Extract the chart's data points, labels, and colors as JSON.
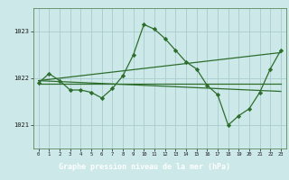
{
  "title": "Graphe pression niveau de la mer (hPa)",
  "bg_color": "#cce8e8",
  "plot_bg_color": "#cce8e8",
  "label_bg_color": "#3a6e3a",
  "label_text_color": "#ffffff",
  "grid_color": "#aacccc",
  "line_color": "#2d6e2d",
  "marker_color": "#2d6e2d",
  "ylim": [
    1020.5,
    1023.5
  ],
  "yticks": [
    1021,
    1022,
    1023
  ],
  "xlim": [
    -0.5,
    23.5
  ],
  "xticks": [
    0,
    1,
    2,
    3,
    4,
    5,
    6,
    7,
    8,
    9,
    10,
    11,
    12,
    13,
    14,
    15,
    16,
    17,
    18,
    19,
    20,
    21,
    22,
    23
  ],
  "series1_x": [
    0,
    1,
    2,
    3,
    4,
    5,
    6,
    7,
    8,
    9,
    10,
    11,
    12,
    13,
    14,
    15,
    16,
    17,
    18,
    19,
    20,
    21,
    22,
    23
  ],
  "series1_y": [
    1021.9,
    1022.1,
    1021.95,
    1021.75,
    1021.75,
    1021.7,
    1021.58,
    1021.78,
    1022.05,
    1022.5,
    1023.15,
    1023.05,
    1022.85,
    1022.6,
    1022.35,
    1022.2,
    1021.85,
    1021.65,
    1021.0,
    1021.2,
    1021.35,
    1021.7,
    1022.2,
    1022.6
  ],
  "trend1_x": [
    0,
    23
  ],
  "trend1_y": [
    1021.95,
    1022.55
  ],
  "trend2_x": [
    0,
    23
  ],
  "trend2_y": [
    1021.95,
    1021.72
  ],
  "trend3_x": [
    0,
    23
  ],
  "trend3_y": [
    1021.88,
    1021.88
  ]
}
